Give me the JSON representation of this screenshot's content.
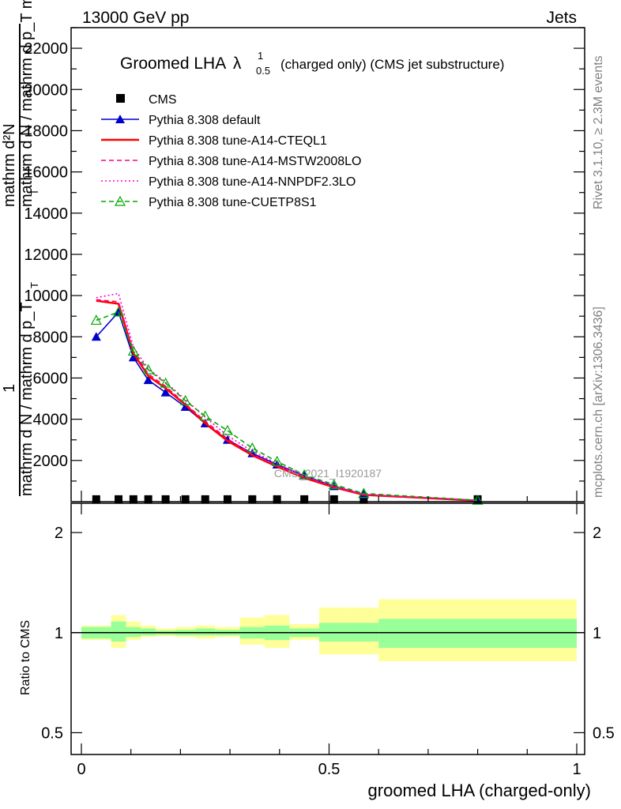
{
  "header": {
    "energy_label": "13000 GeV pp",
    "process_label": "Jets"
  },
  "side": {
    "rivet_label": "Rivet 3.1.10, ≥ 2.3M events",
    "mcplots_label": "mcplots.cern.ch [arXiv:1306.3436]"
  },
  "chart_data": {
    "type": "line",
    "title_main": "Groomed LHA",
    "title_symbol": "λ",
    "title_sup": "1",
    "title_sub": "0.5",
    "title_rest": "(charged only) (CMS jet substructure)",
    "ylabel_main": "mathrm d N / mathrm d p_T mathrm d lambda",
    "ylabel_sub": "T",
    "ylabel_numer": "mathrm d²N",
    "ylabel_one": "1",
    "ylabel_denom": "mathrm d N / mathrm d p_T",
    "ylabel_sub2": "T",
    "xlabel": "groomed LHA (charged-only)",
    "ratio_ylabel": "Ratio to CMS",
    "watermark": "CMS_2021_I1920187",
    "xlim": [
      0,
      1
    ],
    "ylim": [
      0,
      23000
    ],
    "ratio_ylim": [
      0.43,
      2.45
    ],
    "x_ticks": [
      "0",
      "0.5",
      "1"
    ],
    "y_ticks": [
      "2000",
      "4000",
      "6000",
      "8000",
      "10000",
      "12000",
      "14000",
      "16000",
      "18000",
      "20000",
      "22000"
    ],
    "ratio_ticks": [
      "0.5",
      "1",
      "2"
    ],
    "x": [
      0.03,
      0.075,
      0.105,
      0.135,
      0.17,
      0.21,
      0.25,
      0.295,
      0.345,
      0.395,
      0.45,
      0.51,
      0.57,
      0.8
    ],
    "bin_edges": [
      0,
      0.06,
      0.09,
      0.12,
      0.15,
      0.19,
      0.23,
      0.27,
      0.32,
      0.37,
      0.42,
      0.48,
      0.54,
      0.6,
      1.0
    ],
    "series": [
      {
        "name": "CMS",
        "color": "#000000",
        "style": "marker-square",
        "values": [
          120,
          120,
          120,
          120,
          120,
          120,
          120,
          120,
          120,
          120,
          120,
          120,
          120,
          120
        ]
      },
      {
        "name": "Pythia 8.308 default",
        "color": "#0000cc",
        "style": "solid-triangle",
        "values": [
          8000,
          9200,
          7000,
          5900,
          5300,
          4600,
          3800,
          3000,
          2350,
          1800,
          1250,
          750,
          350,
          60
        ]
      },
      {
        "name": "Pythia 8.308 tune-A14-CTEQL1",
        "color": "#ff0000",
        "style": "solid-thick",
        "values": [
          9750,
          9600,
          7200,
          6100,
          5500,
          4700,
          3800,
          2950,
          2250,
          1700,
          1150,
          700,
          330,
          50
        ]
      },
      {
        "name": "Pythia 8.308 tune-A14-MSTW2008LO",
        "color": "#ff0080",
        "style": "dashed",
        "values": [
          9800,
          9700,
          7300,
          6200,
          5600,
          4750,
          3900,
          3050,
          2300,
          1750,
          1200,
          720,
          340,
          55
        ]
      },
      {
        "name": "Pythia 8.308 tune-A14-NNPDF2.3LO",
        "color": "#ff00cc",
        "style": "dotted",
        "values": [
          9900,
          10100,
          7500,
          6450,
          5800,
          4950,
          4100,
          3200,
          2450,
          1850,
          1250,
          760,
          360,
          60
        ]
      },
      {
        "name": "Pythia 8.308 tune-CUETP8S1",
        "color": "#00aa00",
        "style": "dashed-open-triangle",
        "values": [
          8800,
          9200,
          7300,
          6400,
          5750,
          4900,
          4150,
          3450,
          2600,
          1950,
          1300,
          830,
          400,
          70
        ]
      }
    ],
    "ratio_bands": {
      "inner": [
        [
          0.96,
          1.04
        ],
        [
          0.94,
          1.08
        ],
        [
          0.97,
          1.04
        ],
        [
          0.98,
          1.03
        ],
        [
          0.985,
          1.015
        ],
        [
          0.98,
          1.02
        ],
        [
          0.98,
          1.03
        ],
        [
          0.98,
          1.02
        ],
        [
          0.96,
          1.04
        ],
        [
          0.95,
          1.05
        ],
        [
          0.97,
          1.03
        ],
        [
          0.94,
          1.07
        ],
        [
          0.94,
          1.07
        ],
        [
          0.9,
          1.1
        ]
      ],
      "outer": [
        [
          0.95,
          1.05
        ],
        [
          0.9,
          1.13
        ],
        [
          0.95,
          1.08
        ],
        [
          0.97,
          1.05
        ],
        [
          0.975,
          1.03
        ],
        [
          0.97,
          1.04
        ],
        [
          0.96,
          1.05
        ],
        [
          0.97,
          1.04
        ],
        [
          0.92,
          1.11
        ],
        [
          0.9,
          1.13
        ],
        [
          0.95,
          1.06
        ],
        [
          0.86,
          1.19
        ],
        [
          0.86,
          1.19
        ],
        [
          0.82,
          1.26
        ]
      ],
      "inner_color": "#99ff99",
      "outer_color": "#ffff99"
    }
  }
}
